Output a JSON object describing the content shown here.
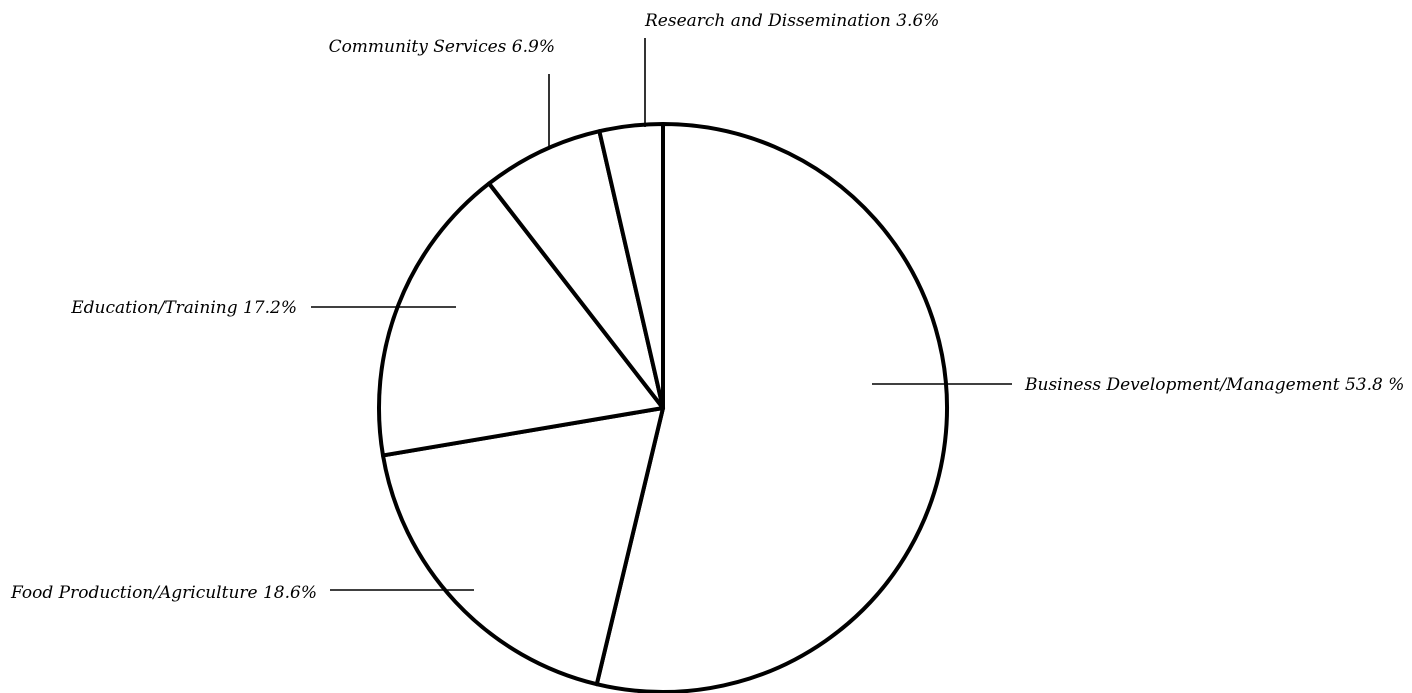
{
  "chart_data": {
    "type": "pie",
    "title": "",
    "start_angle": "12 o'clock",
    "direction": "clockwise",
    "slices": [
      {
        "label": "Business Development/Management 53.8 %",
        "value": 53.8
      },
      {
        "label": "Food Production/Agriculture 18.6%",
        "value": 18.6
      },
      {
        "label": "Education/Training 17.2%",
        "value": 17.2
      },
      {
        "label": "Community Services  6.9%",
        "value": 6.9
      },
      {
        "label": "Research and Dissemination 3.6%",
        "value": 3.6
      }
    ],
    "colors": {
      "fill": "#ffffff",
      "stroke": "#000000"
    }
  }
}
